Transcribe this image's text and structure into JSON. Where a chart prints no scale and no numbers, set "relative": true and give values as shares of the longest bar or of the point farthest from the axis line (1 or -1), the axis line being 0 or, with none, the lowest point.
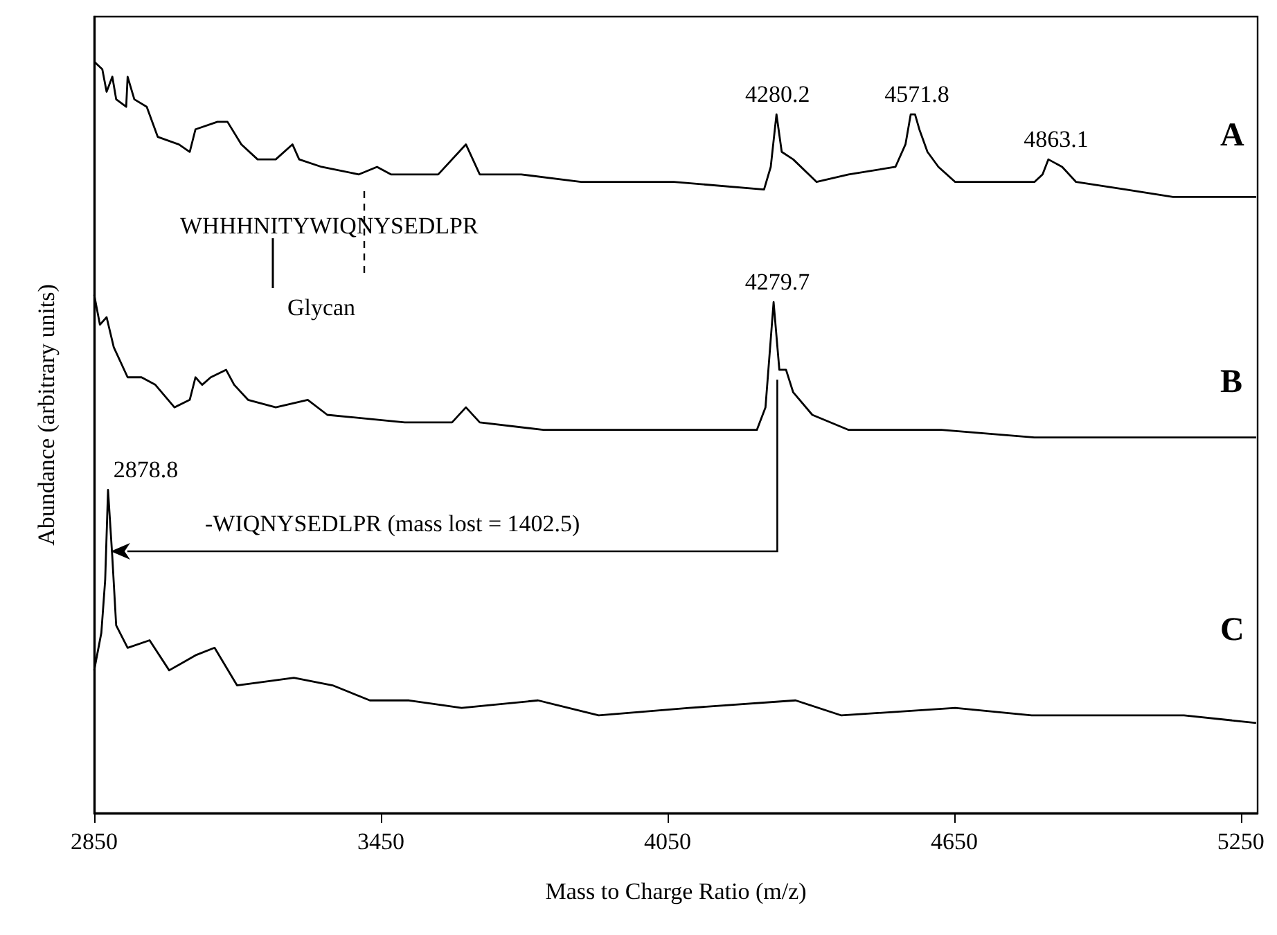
{
  "chart_data": {
    "type": "line",
    "relative": true,
    "xlabel": "Mass to Charge Ratio (m/z)",
    "ylabel": "Abundance (arbitrary units)",
    "xlim": [
      2850,
      5285
    ],
    "xticks": [
      2850,
      3450,
      4050,
      4650,
      5250
    ],
    "grid": false,
    "legend": false,
    "marker": "none",
    "series": [
      {
        "name": "A",
        "color": "#000000",
        "x": [
          2850,
          2867,
          2876,
          2888,
          2896,
          2917,
          2920,
          2934,
          2960,
          2983,
          3027,
          3050,
          3062,
          3108,
          3129,
          3158,
          3192,
          3230,
          3265,
          3279,
          3326,
          3404,
          3442,
          3471,
          3570,
          3628,
          3657,
          3744,
          3869,
          4063,
          4252,
          4266,
          4278,
          4289,
          4313,
          4362,
          4429,
          4527,
          4548,
          4559,
          4568,
          4577,
          4594,
          4617,
          4652,
          4818,
          4835,
          4847,
          4876,
          4905,
          5009,
          5108,
          5282
        ],
        "values": [
          1.0,
          0.99,
          0.96,
          0.98,
          0.95,
          0.94,
          0.98,
          0.95,
          0.94,
          0.9,
          0.89,
          0.88,
          0.91,
          0.92,
          0.92,
          0.89,
          0.87,
          0.87,
          0.89,
          0.87,
          0.86,
          0.85,
          0.86,
          0.85,
          0.85,
          0.89,
          0.85,
          0.85,
          0.84,
          0.84,
          0.83,
          0.86,
          0.93,
          0.88,
          0.87,
          0.84,
          0.85,
          0.86,
          0.89,
          0.93,
          0.93,
          0.91,
          0.88,
          0.86,
          0.84,
          0.84,
          0.85,
          0.87,
          0.86,
          0.84,
          0.83,
          0.82,
          0.82
        ]
      },
      {
        "name": "B",
        "color": "#000000",
        "x": [
          2850,
          2862,
          2876,
          2891,
          2920,
          2949,
          2978,
          3018,
          3050,
          3062,
          3076,
          3094,
          3126,
          3143,
          3172,
          3230,
          3297,
          3338,
          3500,
          3599,
          3628,
          3657,
          3790,
          3985,
          4237,
          4255,
          4272,
          4284,
          4298,
          4313,
          4353,
          4429,
          4623,
          4818,
          5009,
          5282
        ],
        "values": [
          0.69,
          0.65,
          0.66,
          0.62,
          0.58,
          0.58,
          0.57,
          0.54,
          0.55,
          0.58,
          0.57,
          0.58,
          0.59,
          0.57,
          0.55,
          0.54,
          0.55,
          0.53,
          0.52,
          0.52,
          0.54,
          0.52,
          0.51,
          0.51,
          0.51,
          0.54,
          0.68,
          0.59,
          0.59,
          0.56,
          0.53,
          0.51,
          0.51,
          0.5,
          0.5,
          0.5
        ]
      },
      {
        "name": "C",
        "color": "#000000",
        "x": [
          2850,
          2865,
          2873,
          2879,
          2888,
          2896,
          2920,
          2966,
          3007,
          3062,
          3102,
          3149,
          3268,
          3349,
          3427,
          3509,
          3619,
          3779,
          3906,
          4095,
          4318,
          4414,
          4652,
          4812,
          4986,
          5131,
          5282
        ],
        "values": [
          0.19,
          0.24,
          0.31,
          0.43,
          0.34,
          0.25,
          0.22,
          0.23,
          0.19,
          0.21,
          0.22,
          0.17,
          0.18,
          0.17,
          0.15,
          0.15,
          0.14,
          0.15,
          0.13,
          0.14,
          0.15,
          0.13,
          0.14,
          0.13,
          0.13,
          0.13,
          0.12
        ]
      }
    ],
    "annotations": [
      {
        "text": "4280.2",
        "x": 4280.2,
        "y": 0.93
      },
      {
        "text": "4571.8",
        "x": 4571.8,
        "y": 0.93
      },
      {
        "text": "4863.1",
        "x": 4863.1,
        "y": 0.87
      },
      {
        "text": "4279.7",
        "x": 4279.7,
        "y": 0.68
      },
      {
        "text": "2878.8",
        "x": 2878.8,
        "y": 0.43
      },
      "WHHHNITYWIQNYSEDLPR",
      "Glycan",
      "-WIQNYSEDLPR (mass lost = 1402.5)"
    ]
  }
}
